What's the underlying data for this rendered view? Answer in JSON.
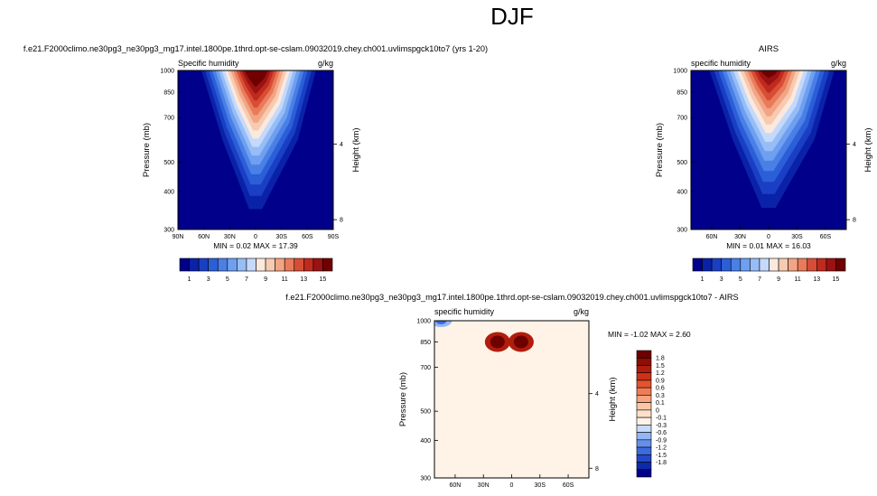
{
  "page_title": "DJF",
  "palettes": {
    "absolute": [
      "#00008b",
      "#0a22a8",
      "#1a3fc4",
      "#2b5fd8",
      "#4a7fe6",
      "#6e9ff0",
      "#97bdf6",
      "#c4d9fb",
      "#fbe9dd",
      "#f7cab2",
      "#f2a584",
      "#e97b5b",
      "#d84d36",
      "#bf2a1d",
      "#9a1212",
      "#700000"
    ],
    "difference": [
      "#00008b",
      "#0d2aa9",
      "#2249c7",
      "#3d6bde",
      "#648fec",
      "#94b6f5",
      "#c8dafb",
      "#fff2e6",
      "#fde0ca",
      "#fbc6a6",
      "#f7a47e",
      "#ef7d55",
      "#e25430",
      "#cc3217",
      "#b01d0c",
      "#8e0d04",
      "#6e0000"
    ]
  },
  "panels": {
    "model": {
      "title": "f.e21.F2000climo.ne30pg3_ne30pg3_mg17.intel.1800pe.1thrd.opt-se-cslam.09032019.chey.ch001.uvlimspgck10to7 (yrs 1-20)",
      "left_label": "Specific humidity",
      "right_label": "g/kg",
      "stats": "MIN =  0.02   MAX =  17.39"
    },
    "obs": {
      "title": "AIRS",
      "left_label": "specific humidity",
      "right_label": "g/kg",
      "stats": "MIN =  0.01   MAX =  16.03"
    },
    "diff": {
      "title": "f.e21.F2000climo.ne30pg3_ne30pg3_mg17.intel.1800pe.1thrd.opt-se-cslam.09032019.chey.ch001.uvlimspgck10to7 - AIRS",
      "left_label": "specific humidity",
      "right_label": "g/kg",
      "stats": "MIN =  -1.02   MAX =  2.60"
    }
  },
  "chart_data": [
    {
      "id": "model",
      "type": "heatmap",
      "title": "f.e21.F2000climo.ne30pg3_ne30pg3_mg17.intel.1800pe.1thrd.opt-se-cslam.09032019.chey.ch001.uvlimspgck10to7 (yrs 1-20)",
      "variable": "Specific humidity",
      "units": "g/kg",
      "xlabel": "",
      "ylabel": "Pressure (mb)",
      "y2label": "Height (km)",
      "x_ticks": [
        "90N",
        "60N",
        "30N",
        "0",
        "30S",
        "60S",
        "90S"
      ],
      "x_tick_values": [
        90,
        60,
        30,
        0,
        -30,
        -60,
        -90
      ],
      "xlim": [
        90,
        -90
      ],
      "y_ticks": [
        300,
        400,
        500,
        700,
        850,
        1000
      ],
      "ylim": [
        1000,
        300
      ],
      "y_scale": "log",
      "y2_ticks": [
        4,
        8
      ],
      "peak": {
        "lat": 0,
        "pressure": 1000,
        "value": 17.39
      },
      "surface_lat_range": [
        -90,
        90
      ],
      "missing_region": {
        "lat": [
          -48,
          -90
        ],
        "pressure": [
          1000,
          920
        ]
      },
      "min": 0.02,
      "max": 17.39,
      "colorbar_labels": [
        "1",
        "3",
        "5",
        "7",
        "9",
        "11",
        "13",
        "15"
      ],
      "colorbar_levels": [
        1,
        2,
        3,
        4,
        5,
        6,
        7,
        8,
        9,
        10,
        11,
        12,
        13,
        14,
        15
      ]
    },
    {
      "id": "obs",
      "type": "heatmap",
      "title": "AIRS",
      "variable": "specific humidity",
      "units": "g/kg",
      "xlabel": "",
      "ylabel": "Pressure (mb)",
      "y2label": "Height (km)",
      "x_ticks": [
        "60N",
        "30N",
        "0",
        "30S",
        "60S"
      ],
      "x_tick_values": [
        60,
        30,
        0,
        -30,
        -60
      ],
      "xlim": [
        82,
        -82
      ],
      "y_ticks": [
        300,
        400,
        500,
        700,
        850,
        1000
      ],
      "ylim": [
        1000,
        300
      ],
      "y_scale": "log",
      "y2_ticks": [
        4,
        8
      ],
      "peak": {
        "lat": 0,
        "pressure": 1000,
        "value": 16.03
      },
      "missing_region": {
        "lat": [
          -75,
          -82
        ],
        "pressure": [
          1000,
          820
        ]
      },
      "min": 0.01,
      "max": 16.03,
      "colorbar_labels": [
        "1",
        "3",
        "5",
        "7",
        "9",
        "11",
        "13",
        "15"
      ],
      "colorbar_levels": [
        1,
        2,
        3,
        4,
        5,
        6,
        7,
        8,
        9,
        10,
        11,
        12,
        13,
        14,
        15
      ]
    },
    {
      "id": "diff",
      "type": "heatmap",
      "title": "f.e21.F2000climo.ne30pg3_ne30pg3_mg17.intel.1800pe.1thrd.opt-se-cslam.09032019.chey.ch001.uvlimspgck10to7 - AIRS",
      "variable": "specific humidity",
      "units": "g/kg",
      "xlabel": "",
      "ylabel": "Pressure (mb)",
      "y2label": "Height (km)",
      "x_ticks": [
        "60N",
        "30N",
        "0",
        "30S",
        "60S"
      ],
      "x_tick_values": [
        60,
        30,
        0,
        -30,
        -60
      ],
      "xlim": [
        82,
        -82
      ],
      "y_ticks": [
        300,
        400,
        500,
        700,
        850,
        1000
      ],
      "ylim": [
        1000,
        300
      ],
      "y_scale": "log",
      "y2_ticks": [
        4,
        8
      ],
      "maxima": [
        {
          "lat": 15,
          "pressure": 850,
          "value": 2.6
        },
        {
          "lat": -10,
          "pressure": 850,
          "value": 2.3
        }
      ],
      "minimum": {
        "lat": 75,
        "pressure": 1000,
        "value": -1.02
      },
      "missing_region": {
        "lat": [
          -55,
          -82
        ],
        "pressure": [
          1000,
          920
        ]
      },
      "min": -1.02,
      "max": 2.6,
      "colorbar_labels": [
        "1.8",
        "1.5",
        "1.2",
        "0.9",
        "0.6",
        "0.3",
        "0.1",
        "0",
        "-0.1",
        "-0.3",
        "-0.6",
        "-0.9",
        "-1.2",
        "-1.5",
        "-1.8"
      ],
      "colorbar_levels": [
        1.8,
        1.5,
        1.2,
        0.9,
        0.6,
        0.3,
        0.1,
        0,
        -0.1,
        -0.3,
        -0.6,
        -0.9,
        -1.2,
        -1.5,
        -1.8
      ]
    }
  ]
}
